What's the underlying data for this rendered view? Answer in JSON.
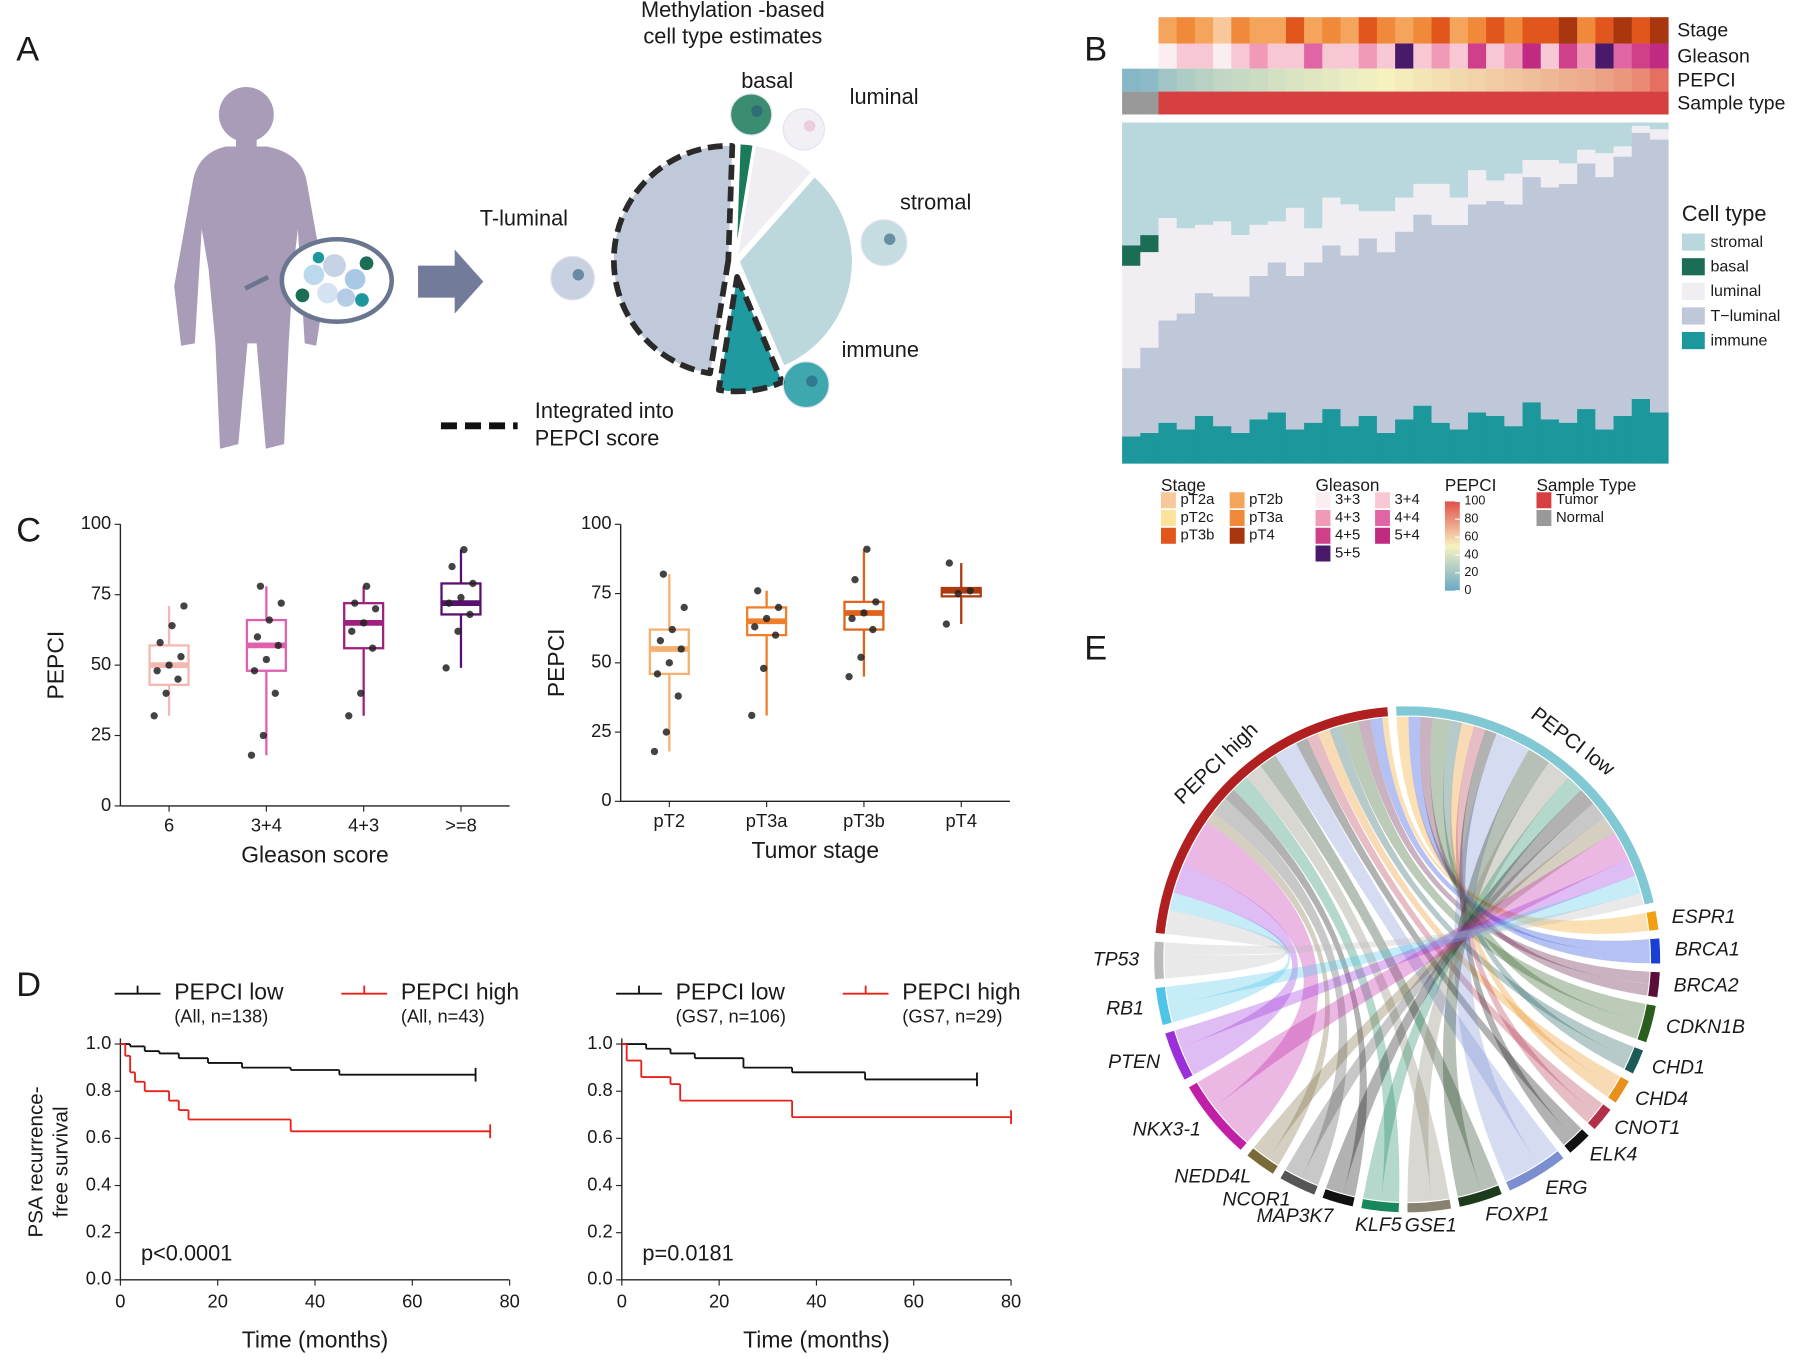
{
  "chart_data": [
    {
      "type": "pie",
      "panel": "A",
      "title": [
        "Methylation -based",
        "cell type estimates"
      ],
      "categories": [
        "basal",
        "luminal",
        "stromal",
        "immune",
        "T-luminal"
      ],
      "values": [
        2,
        9,
        32,
        9,
        48
      ],
      "colors": [
        "#1a7a5a",
        "#f0eef3",
        "#bcd8dc",
        "#1e9aa0",
        "#bfc9da"
      ],
      "dashed": [
        false,
        false,
        false,
        true,
        true
      ],
      "annotation": [
        "Integrated into",
        "PEPCI score"
      ]
    },
    {
      "type": "stacked_bar",
      "panel": "B",
      "legend_title": "Cell type",
      "series": [
        {
          "name": "stromal",
          "color": "#b8d8dd",
          "values": [
            36,
            33,
            28,
            31,
            30,
            29,
            33,
            30,
            29,
            25,
            31,
            22,
            24,
            26,
            26,
            22,
            18,
            18,
            22,
            14,
            17,
            15,
            11,
            11,
            12,
            8,
            9,
            7,
            1,
            2
          ]
        },
        {
          "name": "basal",
          "color": "#1b6e55",
          "values": [
            6,
            5,
            0,
            0,
            0,
            0,
            0,
            0,
            0,
            0,
            0,
            0,
            0,
            0,
            0,
            0,
            0,
            0,
            0,
            0,
            0,
            0,
            0,
            0,
            0,
            0,
            0,
            0,
            0,
            0
          ]
        },
        {
          "name": "luminal",
          "color": "#f0eef2",
          "values": [
            30,
            28,
            30,
            25,
            20,
            22,
            18,
            15,
            12,
            20,
            10,
            14,
            15,
            8,
            12,
            10,
            9,
            12,
            8,
            10,
            6,
            9,
            5,
            8,
            6,
            4,
            7,
            3,
            2,
            3
          ]
        },
        {
          "name": "T−luminal",
          "color": "#bec8d9",
          "values": [
            20,
            25,
            30,
            34,
            36,
            38,
            40,
            42,
            44,
            45,
            47,
            48,
            50,
            52,
            53,
            55,
            56,
            58,
            60,
            61,
            63,
            65,
            66,
            68,
            70,
            72,
            74,
            76,
            78,
            80
          ]
        },
        {
          "name": "immune",
          "color": "#1c979b",
          "values": [
            8,
            9,
            12,
            10,
            14,
            11,
            9,
            13,
            15,
            10,
            12,
            16,
            11,
            14,
            9,
            13,
            17,
            12,
            10,
            15,
            14,
            11,
            18,
            13,
            12,
            16,
            10,
            14,
            19,
            15
          ]
        }
      ],
      "tracks": [
        {
          "name": "Stage",
          "values": [
            null,
            null,
            "pT2b",
            "pT3a",
            "pT2b",
            "pT2a",
            "pT3a",
            "pT2b",
            "pT2b",
            "pT3b",
            "pT2b",
            "pT3a",
            "pT2b",
            "pT3b",
            "pT3a",
            "pT2b",
            "pT3a",
            "pT3b",
            "pT2b",
            "pT3a",
            "pT3b",
            "pT3a",
            "pT3b",
            "pT3b",
            "pT4",
            "pT3a",
            "pT3b",
            "pT4",
            "pT3b",
            "pT4"
          ]
        },
        {
          "name": "Gleason",
          "values": [
            null,
            null,
            "3+3",
            "3+4",
            "3+4",
            "3+3",
            "3+4",
            "4+3",
            "3+4",
            "3+4",
            "4+4",
            "3+4",
            "3+4",
            "4+3",
            "3+4",
            "5+5",
            "3+4",
            "4+3",
            "3+4",
            "4+5",
            "3+4",
            "4+3",
            "5+4",
            "3+4",
            "4+5",
            "4+3",
            "5+5",
            "4+4",
            "4+5",
            "5+4"
          ]
        },
        {
          "name": "PEPCI",
          "values": [
            10,
            12,
            20,
            24,
            28,
            31,
            33,
            35,
            38,
            40,
            42,
            44,
            46,
            48,
            50,
            52,
            54,
            56,
            58,
            60,
            62,
            64,
            66,
            68,
            70,
            72,
            75,
            78,
            82,
            90
          ]
        },
        {
          "name": "Sample type",
          "values": [
            "Normal",
            "Normal",
            "Tumor",
            "Tumor",
            "Tumor",
            "Tumor",
            "Tumor",
            "Tumor",
            "Tumor",
            "Tumor",
            "Tumor",
            "Tumor",
            "Tumor",
            "Tumor",
            "Tumor",
            "Tumor",
            "Tumor",
            "Tumor",
            "Tumor",
            "Tumor",
            "Tumor",
            "Tumor",
            "Tumor",
            "Tumor",
            "Tumor",
            "Tumor",
            "Tumor",
            "Tumor",
            "Tumor",
            "Tumor"
          ]
        }
      ],
      "legends": [
        {
          "title": "Stage",
          "labels": [
            "pT2a",
            "pT2b",
            "pT2c",
            "pT3a",
            "pT3b",
            "pT4"
          ],
          "colors": [
            "#f7c99a",
            "#f5a45b",
            "#fbe39a",
            "#f08a3a",
            "#e0561c",
            "#a8360e"
          ]
        },
        {
          "title": "Gleason",
          "labels": [
            "3+3",
            "3+4",
            "4+3",
            "4+4",
            "4+5",
            "5+4",
            "5+5"
          ],
          "colors": [
            "#fbeef0",
            "#f7c8d3",
            "#f09ab8",
            "#e065a5",
            "#d0408a",
            "#c02a80",
            "#4a1a6a"
          ]
        },
        {
          "title": "PEPCI",
          "ticks": [
            0,
            20,
            40,
            60,
            80,
            100
          ],
          "colors": [
            "#6aa8c8",
            "#f6f2c0",
            "#e0504a"
          ]
        },
        {
          "title": "Sample Type",
          "labels": [
            "Tumor",
            "Normal"
          ],
          "colors": [
            "#d64040",
            "#999999"
          ]
        }
      ]
    },
    {
      "type": "box",
      "panel": "C",
      "ylabel": "PEPCI",
      "xlabel": "Gleason score",
      "categories": [
        "6",
        "3+4",
        "4+3",
        ">=8"
      ],
      "colors": [
        "#f4b8b0",
        "#e060b0",
        "#a02080",
        "#5a1070"
      ],
      "boxes": [
        {
          "min": 32,
          "q1": 43,
          "median": 50,
          "q3": 57,
          "max": 71
        },
        {
          "min": 18,
          "q1": 48,
          "median": 57,
          "q3": 66,
          "max": 78
        },
        {
          "min": 32,
          "q1": 56,
          "median": 65,
          "q3": 72,
          "max": 78
        },
        {
          "min": 49,
          "q1": 68,
          "median": 72,
          "q3": 79,
          "max": 91
        }
      ],
      "points": [
        [
          32,
          40,
          45,
          48,
          50,
          53,
          58,
          64,
          71
        ],
        [
          18,
          25,
          40,
          48,
          52,
          57,
          60,
          66,
          72,
          78
        ],
        [
          32,
          40,
          56,
          62,
          65,
          70,
          72,
          78
        ],
        [
          49,
          62,
          68,
          72,
          74,
          79,
          85,
          91
        ]
      ],
      "ylim": [
        0,
        100
      ],
      "yticks": [
        0,
        25,
        50,
        75,
        100
      ]
    },
    {
      "type": "box",
      "ylabel": "PEPCI",
      "xlabel": "Tumor stage",
      "categories": [
        "pT2",
        "pT3a",
        "pT3b",
        "pT4"
      ],
      "colors": [
        "#f5b070",
        "#ef7f2a",
        "#e0641c",
        "#b03a10"
      ],
      "boxes": [
        {
          "min": 18,
          "q1": 46,
          "median": 55,
          "q3": 62,
          "max": 82
        },
        {
          "min": 31,
          "q1": 60,
          "median": 65,
          "q3": 70,
          "max": 76
        },
        {
          "min": 45,
          "q1": 62,
          "median": 68,
          "q3": 72,
          "max": 91
        },
        {
          "min": 64,
          "q1": 74,
          "median": 76,
          "q3": 77,
          "max": 86
        }
      ],
      "points": [
        [
          18,
          25,
          38,
          46,
          50,
          55,
          58,
          62,
          70,
          82
        ],
        [
          31,
          48,
          60,
          63,
          66,
          70,
          76
        ],
        [
          45,
          52,
          62,
          66,
          68,
          72,
          80,
          91
        ],
        [
          64,
          75,
          76,
          86
        ]
      ],
      "ylim": [
        0,
        100
      ],
      "yticks": [
        0,
        25,
        50,
        75,
        100
      ]
    },
    {
      "type": "step",
      "panel": "D",
      "ylabel": [
        "PSA recurrence-",
        "free survival"
      ],
      "xlabel": "Time (months)",
      "annotation": "p<0.0001",
      "series": [
        {
          "name": "PEPCI low",
          "note": "(All, n=138)",
          "color": "#111111",
          "x": [
            0,
            2,
            5,
            8,
            12,
            18,
            25,
            35,
            45,
            73
          ],
          "values": [
            1,
            0.99,
            0.97,
            0.96,
            0.94,
            0.92,
            0.9,
            0.89,
            0.87,
            0.87
          ]
        },
        {
          "name": "PEPCI high",
          "note": "(All, n=43)",
          "color": "#e8201a",
          "x": [
            0,
            1,
            2,
            3,
            5,
            10,
            12,
            14,
            35,
            76
          ],
          "values": [
            1,
            0.95,
            0.88,
            0.84,
            0.8,
            0.76,
            0.72,
            0.68,
            0.63,
            0.63
          ]
        }
      ],
      "xlim": [
        0,
        80
      ],
      "xticks": [
        0,
        20,
        40,
        60,
        80
      ],
      "ylim": [
        0,
        1
      ],
      "yticks": [
        {
          "value": 0,
          "label": "0.0"
        },
        {
          "value": 0.2,
          "label": "0.2"
        },
        {
          "value": 0.4,
          "label": "0.4"
        },
        {
          "value": 0.6,
          "label": "0.6"
        },
        {
          "value": 0.8,
          "label": "0.8"
        },
        {
          "value": 1,
          "label": "1.0"
        }
      ]
    },
    {
      "type": "step",
      "xlabel": "Time (months)",
      "annotation": "p=0.0181",
      "series": [
        {
          "name": "PEPCI low",
          "note": "(GS7, n=106)",
          "color": "#111111",
          "x": [
            0,
            5,
            10,
            15,
            25,
            35,
            50,
            73
          ],
          "values": [
            1,
            0.98,
            0.96,
            0.94,
            0.9,
            0.88,
            0.85,
            0.85
          ]
        },
        {
          "name": "PEPCI high",
          "note": "(GS7, n=29)",
          "color": "#e8201a",
          "x": [
            0,
            1,
            4,
            10,
            12,
            35,
            80
          ],
          "values": [
            1,
            0.93,
            0.86,
            0.83,
            0.76,
            0.69,
            0.69
          ]
        }
      ],
      "xlim": [
        0,
        80
      ],
      "xticks": [
        0,
        20,
        40,
        60,
        80
      ],
      "ylim": [
        0,
        1
      ],
      "yticks": [
        {
          "value": 0,
          "label": "0.0"
        },
        {
          "value": 0.2,
          "label": "0.2"
        },
        {
          "value": 0.4,
          "label": "0.4"
        },
        {
          "value": 0.6,
          "label": "0.6"
        },
        {
          "value": 0.8,
          "label": "0.8"
        },
        {
          "value": 1,
          "label": "1.0"
        }
      ]
    },
    {
      "type": "chord",
      "panel": "E",
      "groups": [
        {
          "name": "PEPCI high",
          "color": "#b02020"
        },
        {
          "name": "PEPCI low",
          "color": "#80c8d4"
        }
      ],
      "genes": [
        {
          "name": "ESPR1",
          "color": "#f0a010",
          "values": [
            1,
            2
          ]
        },
        {
          "name": "BRCA1",
          "color": "#1a3fd6",
          "values": [
            2,
            2
          ]
        },
        {
          "name": "BRCA2",
          "color": "#5a0f3a",
          "values": [
            2,
            2
          ]
        },
        {
          "name": "CDKN1B",
          "color": "#2a5e1e",
          "values": [
            3,
            3
          ]
        },
        {
          "name": "CHD1",
          "color": "#1d5a5a",
          "values": [
            2,
            2
          ]
        },
        {
          "name": "CHD4",
          "color": "#e8901a",
          "values": [
            2,
            2
          ]
        },
        {
          "name": "CNOT1",
          "color": "#b0304a",
          "values": [
            2,
            2
          ]
        },
        {
          "name": "ELK4",
          "color": "#111111",
          "values": [
            2,
            2
          ]
        },
        {
          "name": "ERG",
          "color": "#7b8fd0",
          "values": [
            4,
            6
          ]
        },
        {
          "name": "FOXP1",
          "color": "#1c3a1c",
          "values": [
            3,
            4
          ]
        },
        {
          "name": "GSE1",
          "color": "#8a8270",
          "values": [
            3,
            4
          ]
        },
        {
          "name": "KLF5",
          "color": "#17875c",
          "values": [
            3,
            3
          ]
        },
        {
          "name": "MAP3K7",
          "color": "#111111",
          "values": [
            2,
            3
          ]
        },
        {
          "name": "NCOR1",
          "color": "#555555",
          "values": [
            3,
            3
          ]
        },
        {
          "name": "NEDD4L",
          "color": "#7a6a3a",
          "values": [
            2,
            3
          ]
        },
        {
          "name": "NKX3-1",
          "color": "#c21fa8",
          "values": [
            8,
            5
          ]
        },
        {
          "name": "PTEN",
          "color": "#9b30d9",
          "values": [
            5,
            3
          ]
        },
        {
          "name": "RB1",
          "color": "#4fc3e8",
          "values": [
            3,
            3
          ]
        },
        {
          "name": "TP53",
          "color": "#bbbbbb",
          "values": [
            4,
            2
          ]
        }
      ]
    }
  ]
}
